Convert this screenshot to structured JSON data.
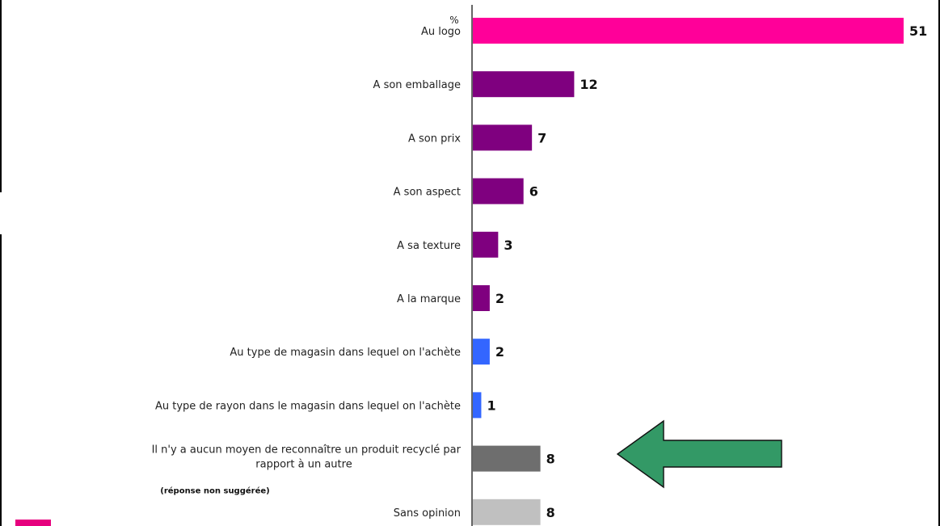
{
  "chart_data": {
    "type": "bar",
    "orientation": "horizontal",
    "unit": "%",
    "categories": [
      "Au logo",
      "A son emballage",
      "A son prix",
      "A son aspect",
      "A sa texture",
      "A la marque",
      "Au type de magasin dans lequel on l'achète",
      "Au type de rayon dans le magasin dans lequel on l'achète",
      "Il n'y a aucun moyen de reconnaître un produit recyclé par rapport à un autre",
      "Sans opinion"
    ],
    "label_lines": [
      [
        "Au logo"
      ],
      [
        "A son emballage"
      ],
      [
        "A son prix"
      ],
      [
        "A son aspect"
      ],
      [
        "A sa texture"
      ],
      [
        "A la marque"
      ],
      [
        "Au type de magasin dans lequel on l'achète"
      ],
      [
        "Au type de rayon dans le magasin dans lequel on l'achète"
      ],
      [
        "Il n'y a aucun moyen de reconnaître un produit recyclé par",
        "rapport à un autre"
      ],
      [
        "Sans opinion"
      ]
    ],
    "values": [
      51,
      12,
      7,
      6,
      3,
      2,
      2,
      1,
      8,
      8
    ],
    "colors": [
      "#ff0099",
      "#7f007f",
      "#7f007f",
      "#7f007f",
      "#7f007f",
      "#7f007f",
      "#3366ff",
      "#3366ff",
      "#6e6e6e",
      "#c0c0c0"
    ],
    "annotations": [
      {
        "category_index": 8,
        "text": "(réponse non suggérée)"
      }
    ],
    "highlight_arrow": {
      "category_index": 8,
      "color": "#339966",
      "direction": "left"
    },
    "grid": false,
    "legend": "none"
  }
}
